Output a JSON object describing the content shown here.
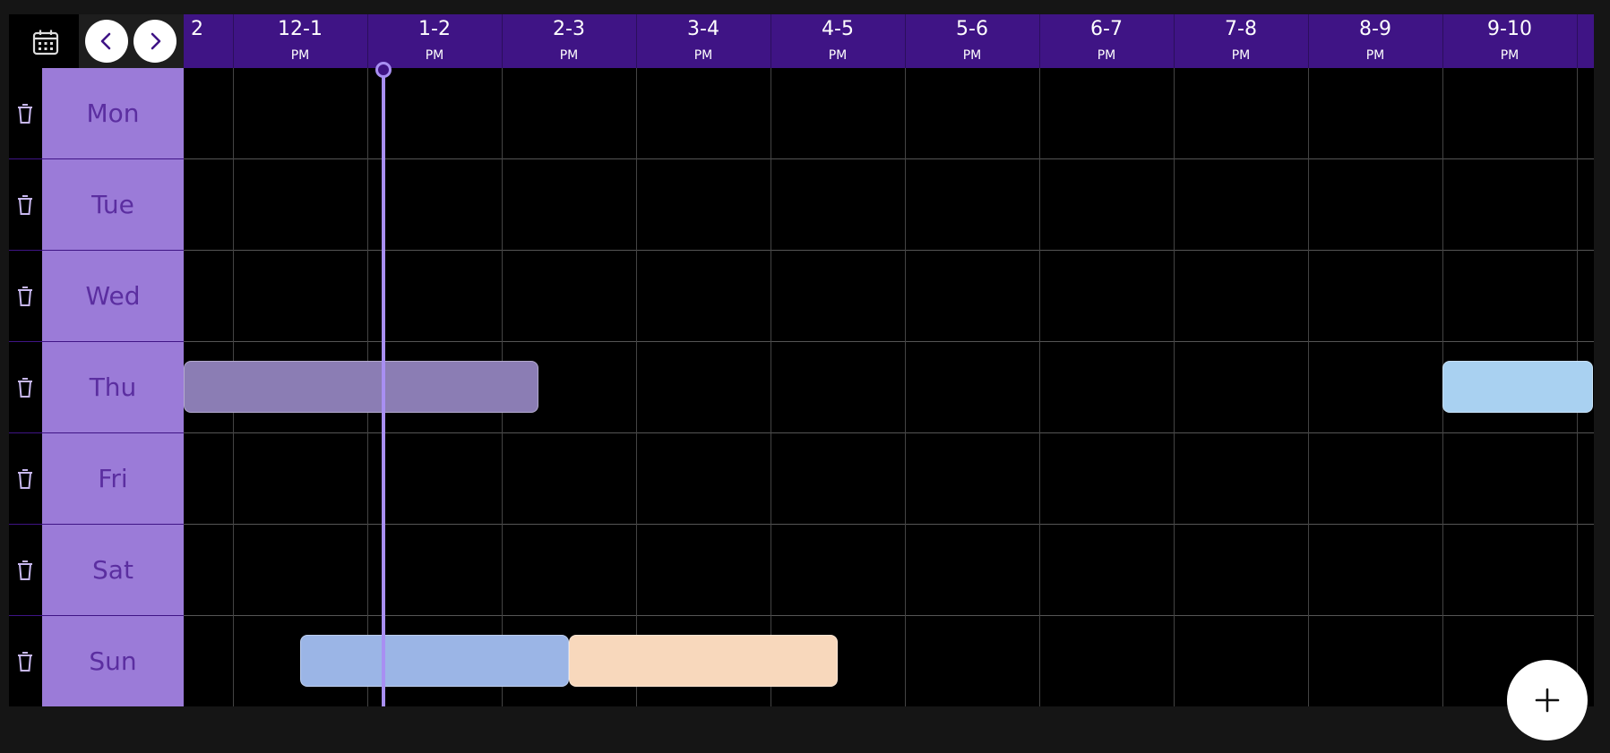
{
  "header": {
    "columns": [
      {
        "range": "2",
        "ampm": ""
      },
      {
        "range": "12-1",
        "ampm": "PM"
      },
      {
        "range": "1-2",
        "ampm": "PM"
      },
      {
        "range": "2-3",
        "ampm": "PM"
      },
      {
        "range": "3-4",
        "ampm": "PM"
      },
      {
        "range": "4-5",
        "ampm": "PM"
      },
      {
        "range": "5-6",
        "ampm": "PM"
      },
      {
        "range": "6-7",
        "ampm": "PM"
      },
      {
        "range": "7-8",
        "ampm": "PM"
      },
      {
        "range": "8-9",
        "ampm": "PM"
      },
      {
        "range": "9-10",
        "ampm": "PM"
      }
    ]
  },
  "days": [
    "Mon",
    "Tue",
    "Wed",
    "Thu",
    "Fri",
    "Sat",
    "Sun"
  ],
  "events": [
    {
      "day": "Thu",
      "start_hour": 11.6,
      "end_hour": 14.27,
      "color": "#8b7db4"
    },
    {
      "day": "Thu",
      "start_hour": 21.0,
      "end_hour": 22.12,
      "color": "#a9d1f1"
    },
    {
      "day": "Sun",
      "start_hour": 12.5,
      "end_hour": 14.5,
      "color": "#9bb5e6"
    },
    {
      "day": "Sun",
      "start_hour": 14.5,
      "end_hour": 16.5,
      "color": "#f8d8bc"
    }
  ],
  "now_hour": 13.12,
  "colors": {
    "header_bg": "#3f1485",
    "day_label_bg": "#9b7bd8",
    "day_label_text": "#5b2ea0",
    "now_indicator": "#a88ff2"
  },
  "icons": {
    "calendar": "calendar-icon",
    "prev": "chevron-left-icon",
    "next": "chevron-right-icon",
    "delete": "trash-icon",
    "add": "plus-icon"
  }
}
